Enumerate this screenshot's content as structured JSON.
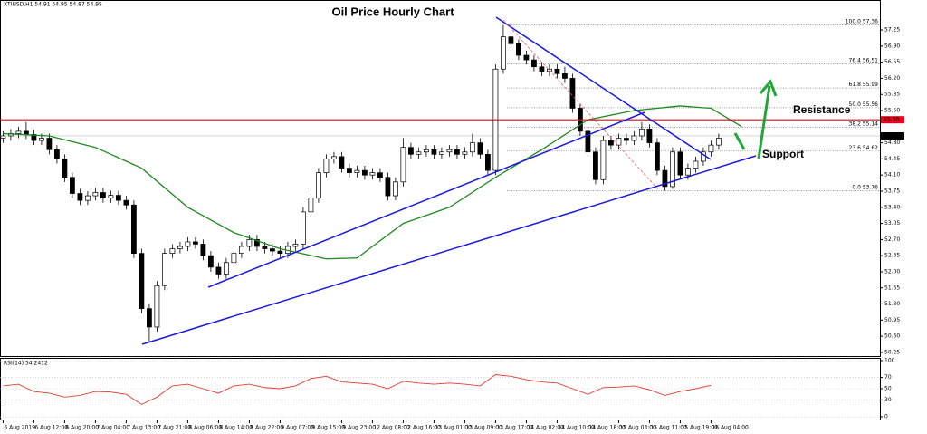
{
  "chart_data": [
    {
      "type": "candlestick",
      "title": "Oil Price Hourly Chart",
      "header": "XTIUSD,H1 54.91 54.95 54.87 54.95",
      "x": [
        0,
        1,
        2,
        3,
        4,
        5,
        6,
        7,
        8,
        9,
        10,
        11,
        12,
        13,
        14,
        15,
        16,
        17,
        18,
        19,
        20,
        21,
        22,
        23,
        24,
        25,
        26,
        27,
        28,
        29,
        30,
        31,
        32,
        33,
        34,
        35,
        36,
        37,
        38,
        39,
        40,
        41,
        42,
        43,
        44,
        45,
        46,
        47,
        48,
        49,
        50,
        51,
        52,
        53,
        54,
        55,
        56,
        57,
        58,
        59,
        60,
        61,
        62,
        63,
        64,
        65,
        66,
        67,
        68,
        69,
        70,
        71,
        72,
        73,
        74,
        75,
        76,
        77,
        78,
        79,
        80,
        81,
        82,
        83,
        84,
        85,
        86,
        87,
        88,
        89,
        90,
        91,
        92,
        93
      ],
      "open": [
        54.9,
        54.95,
        55.0,
        55.05,
        54.98,
        54.85,
        54.9,
        54.65,
        54.45,
        54.05,
        53.7,
        53.55,
        53.65,
        53.72,
        53.6,
        53.66,
        53.55,
        53.45,
        52.4,
        51.2,
        50.8,
        51.7,
        52.4,
        52.5,
        52.55,
        52.65,
        52.6,
        52.35,
        52.1,
        51.95,
        52.2,
        52.4,
        52.55,
        52.7,
        52.55,
        52.5,
        52.45,
        52.4,
        52.55,
        52.6,
        53.3,
        53.6,
        54.15,
        54.45,
        54.5,
        54.25,
        54.15,
        54.2,
        54.1,
        54.15,
        54.05,
        53.65,
        53.95,
        54.7,
        54.55,
        54.6,
        54.65,
        54.55,
        54.6,
        54.65,
        54.55,
        54.6,
        54.8,
        54.55,
        54.2,
        56.4,
        57.1,
        56.95,
        56.7,
        56.6,
        56.45,
        56.35,
        56.4,
        56.3,
        56.2,
        55.55,
        55.05,
        54.6,
        54.0,
        54.85,
        54.75,
        54.9,
        54.85,
        54.95,
        55.1,
        54.8,
        54.2,
        53.85,
        54.6,
        54.1,
        54.25,
        54.4,
        54.6,
        54.75
      ],
      "high": [
        55.05,
        55.1,
        55.15,
        55.25,
        55.08,
        55.0,
        55.0,
        54.75,
        54.55,
        54.15,
        53.8,
        53.75,
        53.82,
        53.82,
        53.76,
        53.76,
        53.65,
        53.55,
        52.5,
        51.3,
        51.8,
        52.5,
        52.6,
        52.65,
        52.75,
        52.75,
        52.7,
        52.45,
        52.2,
        52.3,
        52.5,
        52.65,
        52.8,
        52.8,
        52.65,
        52.6,
        52.55,
        52.65,
        52.7,
        53.4,
        53.7,
        54.25,
        54.55,
        54.6,
        54.6,
        54.35,
        54.3,
        54.3,
        54.25,
        54.25,
        54.15,
        54.05,
        54.9,
        54.8,
        54.7,
        54.75,
        54.75,
        54.7,
        54.75,
        54.75,
        54.7,
        55.0,
        54.9,
        54.65,
        56.5,
        57.36,
        57.2,
        57.05,
        56.8,
        56.7,
        56.55,
        56.5,
        56.5,
        56.45,
        56.3,
        55.65,
        55.15,
        54.7,
        54.95,
        54.95,
        55.0,
        55.0,
        55.05,
        55.25,
        55.2,
        54.9,
        54.3,
        54.7,
        54.7,
        54.35,
        54.5,
        54.7,
        54.85,
        55.0
      ],
      "low": [
        54.8,
        54.85,
        54.9,
        54.88,
        54.75,
        54.75,
        54.55,
        54.35,
        53.95,
        53.6,
        53.45,
        53.45,
        53.55,
        53.5,
        53.5,
        53.45,
        53.35,
        52.3,
        51.1,
        50.47,
        50.7,
        51.6,
        52.3,
        52.4,
        52.45,
        52.5,
        52.25,
        52.0,
        51.85,
        51.85,
        52.1,
        52.3,
        52.45,
        52.45,
        52.4,
        52.35,
        52.3,
        52.3,
        52.45,
        52.5,
        53.2,
        53.5,
        54.05,
        54.35,
        54.15,
        54.05,
        54.05,
        54.0,
        54.0,
        53.95,
        53.55,
        53.55,
        53.85,
        54.45,
        54.45,
        54.5,
        54.45,
        54.45,
        54.5,
        54.45,
        54.45,
        54.5,
        54.45,
        54.1,
        54.1,
        56.3,
        56.85,
        56.6,
        56.5,
        56.35,
        56.25,
        56.25,
        56.2,
        56.1,
        55.45,
        54.95,
        54.5,
        53.9,
        53.9,
        54.65,
        54.65,
        54.75,
        54.75,
        54.85,
        54.7,
        54.1,
        53.76,
        53.8,
        54.0,
        54.0,
        54.15,
        54.3,
        54.5,
        54.65
      ],
      "close": [
        54.95,
        55.0,
        55.05,
        54.98,
        54.85,
        54.9,
        54.65,
        54.45,
        54.05,
        53.7,
        53.55,
        53.65,
        53.72,
        53.6,
        53.66,
        53.55,
        53.45,
        52.4,
        51.2,
        50.8,
        51.7,
        52.4,
        52.5,
        52.55,
        52.65,
        52.6,
        52.35,
        52.1,
        51.95,
        52.2,
        52.4,
        52.55,
        52.7,
        52.55,
        52.5,
        52.45,
        52.4,
        52.55,
        52.6,
        53.3,
        53.6,
        54.15,
        54.45,
        54.5,
        54.25,
        54.15,
        54.2,
        54.1,
        54.15,
        54.05,
        53.65,
        53.95,
        54.7,
        54.55,
        54.6,
        54.65,
        54.55,
        54.6,
        54.65,
        54.55,
        54.6,
        54.8,
        54.55,
        54.2,
        56.4,
        57.1,
        56.95,
        56.7,
        56.6,
        56.45,
        56.35,
        56.4,
        56.3,
        56.2,
        55.55,
        55.05,
        54.6,
        54.0,
        54.85,
        54.75,
        54.9,
        54.85,
        54.95,
        55.1,
        54.8,
        54.2,
        53.85,
        54.6,
        54.1,
        54.25,
        54.4,
        54.6,
        54.75,
        54.9
      ],
      "up_color": "#ffffff",
      "down_color": "#000000",
      "xlim": [
        -0.4,
        113.95
      ],
      "xticks": [
        {
          "value": 0,
          "label": "6 Aug 2019"
        },
        {
          "value": 4,
          "label": "6 Aug 12:00"
        },
        {
          "value": 8,
          "label": "6 Aug 20:00"
        },
        {
          "value": 12,
          "label": "7 Aug 04:00"
        },
        {
          "value": 16,
          "label": "7 Aug 13:00"
        },
        {
          "value": 20,
          "label": "7 Aug 21:00"
        },
        {
          "value": 24,
          "label": "8 Aug 06:00"
        },
        {
          "value": 28,
          "label": "8 Aug 14:00"
        },
        {
          "value": 32,
          "label": "8 Aug 22:00"
        },
        {
          "value": 36,
          "label": "9 Aug 07:00"
        },
        {
          "value": 40,
          "label": "9 Aug 15:00"
        },
        {
          "value": 44,
          "label": "9 Aug 23:00"
        },
        {
          "value": 48,
          "label": "12 Aug 08:00"
        },
        {
          "value": 52,
          "label": "12 Aug 16:00"
        },
        {
          "value": 56,
          "label": "13 Aug 01:00"
        },
        {
          "value": 60,
          "label": "13 Aug 09:00"
        },
        {
          "value": 64,
          "label": "13 Aug 17:00"
        },
        {
          "value": 68,
          "label": "14 Aug 02:00"
        },
        {
          "value": 72,
          "label": "14 Aug 10:00"
        },
        {
          "value": 76,
          "label": "14 Aug 18:00"
        },
        {
          "value": 80,
          "label": "15 Aug 03:00"
        },
        {
          "value": 84,
          "label": "15 Aug 11:00"
        },
        {
          "value": 88,
          "label": "15 Aug 19:00"
        },
        {
          "value": 92,
          "label": "16 Aug 04:00"
        }
      ],
      "ylim": [
        50.17,
        57.9
      ],
      "yticks": [
        57.25,
        {
          "value": 56.9,
          "label": "56.90"
        },
        56.55,
        {
          "value": 56.2,
          "label": "56.20"
        },
        55.85,
        {
          "value": 55.5,
          "label": "55.50"
        },
        {
          "value": 54.8,
          "label": "54.80"
        },
        54.45,
        {
          "value": 54.1,
          "label": "54.10"
        },
        53.75,
        {
          "value": 53.4,
          "label": "53.40"
        },
        53.05,
        {
          "value": 52.7,
          "label": "52.70"
        },
        52.35,
        {
          "value": 52.0,
          "label": "52.00"
        },
        51.65,
        {
          "value": 51.3,
          "label": "51.30"
        },
        50.95,
        {
          "value": 50.6,
          "label": "50.60"
        },
        50.25
      ],
      "moving_average": {
        "color": "#1f8a1f",
        "x": [
          0,
          6,
          12,
          18,
          24,
          30,
          36,
          42,
          46,
          52,
          58,
          64,
          70,
          76,
          82,
          88,
          92,
          96
        ],
        "values": [
          55.0,
          54.95,
          54.7,
          54.25,
          53.4,
          52.85,
          52.5,
          52.28,
          52.3,
          53.05,
          53.4,
          54.05,
          54.65,
          55.3,
          55.5,
          55.6,
          55.55,
          55.15
        ]
      },
      "fibonacci": [
        {
          "level": "100.0",
          "price": 57.36
        },
        {
          "level": "76.4",
          "price": 56.51
        },
        {
          "level": "61.8",
          "price": 55.99
        },
        {
          "level": "50.0",
          "price": 55.56
        },
        {
          "level": "38.2",
          "price": 55.14
        },
        {
          "level": "23.6",
          "price": 54.62
        },
        {
          "level": "0.0",
          "price": 53.76
        }
      ],
      "resistance_level": {
        "value": 55.3,
        "label": "55.30"
      },
      "resistance_color": "#e8001c",
      "resistance_text": "Resistance",
      "support_text": "Support",
      "support_color": "#22a63a",
      "last_price": {
        "value": 54.95,
        "label": "54.95"
      }
    },
    {
      "type": "line",
      "title": "RSI(14) 54.2412",
      "x": [
        0,
        2,
        4,
        6,
        8,
        10,
        12,
        14,
        16,
        18,
        20,
        22,
        24,
        26,
        28,
        30,
        32,
        34,
        36,
        38,
        40,
        42,
        44,
        46,
        48,
        50,
        52,
        54,
        56,
        58,
        60,
        62,
        64,
        66,
        68,
        70,
        72,
        74,
        76,
        78,
        80,
        82,
        84,
        86,
        88,
        90,
        92
      ],
      "values": [
        55,
        58,
        45,
        42,
        35,
        38,
        45,
        44,
        40,
        22,
        35,
        55,
        58,
        50,
        42,
        55,
        58,
        52,
        50,
        55,
        68,
        72,
        62,
        60,
        58,
        50,
        63,
        60,
        58,
        60,
        58,
        55,
        75,
        72,
        66,
        62,
        60,
        50,
        40,
        52,
        53,
        55,
        48,
        38,
        45,
        50,
        56
      ],
      "color": "#e03c31",
      "xlim": [
        -0.4,
        113.95
      ],
      "ylim": [
        0,
        100
      ],
      "yticks": [
        0,
        30,
        50,
        70,
        100
      ],
      "grid": true
    }
  ]
}
